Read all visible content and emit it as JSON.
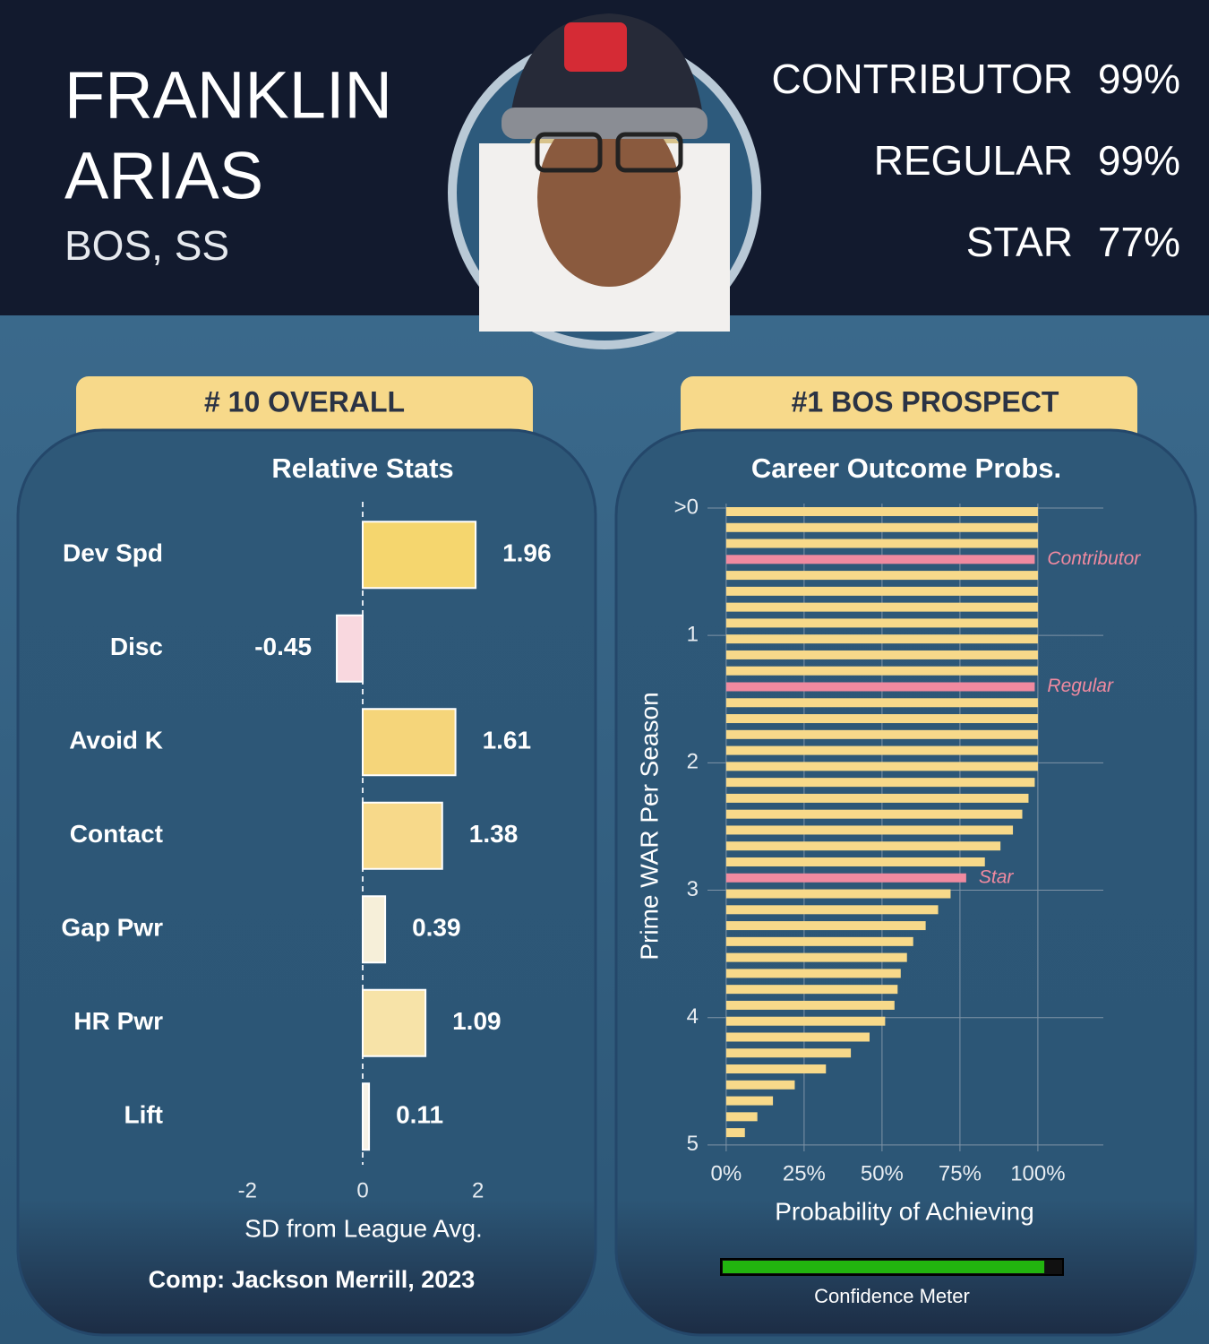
{
  "header": {
    "name_lines": [
      "FRANKLIN",
      "ARIAS"
    ],
    "team_position": "BOS, SS",
    "outcomes": [
      {
        "label": "CONTRIBUTOR",
        "value": "99%"
      },
      {
        "label": "REGULAR",
        "value": "99%"
      },
      {
        "label": "STAR",
        "value": "77%"
      }
    ]
  },
  "chart_data": [
    {
      "type": "hbar",
      "badge": "# 10 OVERALL",
      "title": "Relative Stats",
      "categories": [
        "Dev Spd",
        "Disc",
        "Avoid K",
        "Contact",
        "Gap Pwr",
        "HR Pwr",
        "Lift"
      ],
      "values": [
        1.96,
        -0.45,
        1.61,
        1.38,
        0.39,
        1.09,
        0.11
      ],
      "colors": [
        "#f5d66e",
        "#f9d8df",
        "#f5d57a",
        "#f7d98a",
        "#f6efd9",
        "#f7e3a8",
        "#f7f2e6"
      ],
      "xlim": [
        -3,
        3
      ],
      "xticks": [
        -2,
        0,
        2
      ],
      "x_label": "SD from League Avg.",
      "annotation": "Comp: Jackson Merrill, 2023"
    },
    {
      "type": "outcome",
      "badge": "#1 BOS PROSPECT",
      "title": "Career Outcome Probs.",
      "y": [
        0,
        0.125,
        0.25,
        0.375,
        0.5,
        0.625,
        0.75,
        0.875,
        1,
        1.125,
        1.25,
        1.375,
        1.5,
        1.625,
        1.75,
        1.875,
        2,
        2.125,
        2.25,
        2.375,
        2.5,
        2.625,
        2.75,
        2.875,
        3,
        3.125,
        3.25,
        3.375,
        3.5,
        3.625,
        3.75,
        3.875,
        4,
        4.125,
        4.25,
        4.375,
        4.5,
        4.625,
        4.75,
        4.875
      ],
      "values": [
        100,
        100,
        100,
        99,
        100,
        100,
        100,
        100,
        100,
        100,
        100,
        99,
        100,
        100,
        100,
        100,
        100,
        99,
        97,
        95,
        92,
        88,
        83,
        77,
        72,
        68,
        64,
        60,
        58,
        56,
        55,
        54,
        51,
        46,
        40,
        32,
        22,
        15,
        10,
        6
      ],
      "color": "#f7d98a",
      "highlight_color": "#f08aa0",
      "highlights": [
        {
          "index": 3,
          "label": "Contributor"
        },
        {
          "index": 11,
          "label": "Regular"
        },
        {
          "index": 23,
          "label": "Star"
        }
      ],
      "xlim": [
        -6,
        121
      ],
      "ylim": [
        0,
        5.05
      ],
      "xticks": [
        {
          "value": 0,
          "label": "0%"
        },
        {
          "value": 25,
          "label": "25%"
        },
        {
          "value": 50,
          "label": "50%"
        },
        {
          "value": 75,
          "label": "75%"
        },
        {
          "value": 100,
          "label": "100%"
        }
      ],
      "yticks": [
        {
          "value": 0,
          "label": ">0"
        },
        1,
        2,
        3,
        4,
        5
      ],
      "x_label": "Probability of Achieving",
      "y_label": "Prime WAR Per Season",
      "meter": {
        "label": "Confidence Meter",
        "value": 95,
        "color": "#22b40f"
      }
    }
  ]
}
